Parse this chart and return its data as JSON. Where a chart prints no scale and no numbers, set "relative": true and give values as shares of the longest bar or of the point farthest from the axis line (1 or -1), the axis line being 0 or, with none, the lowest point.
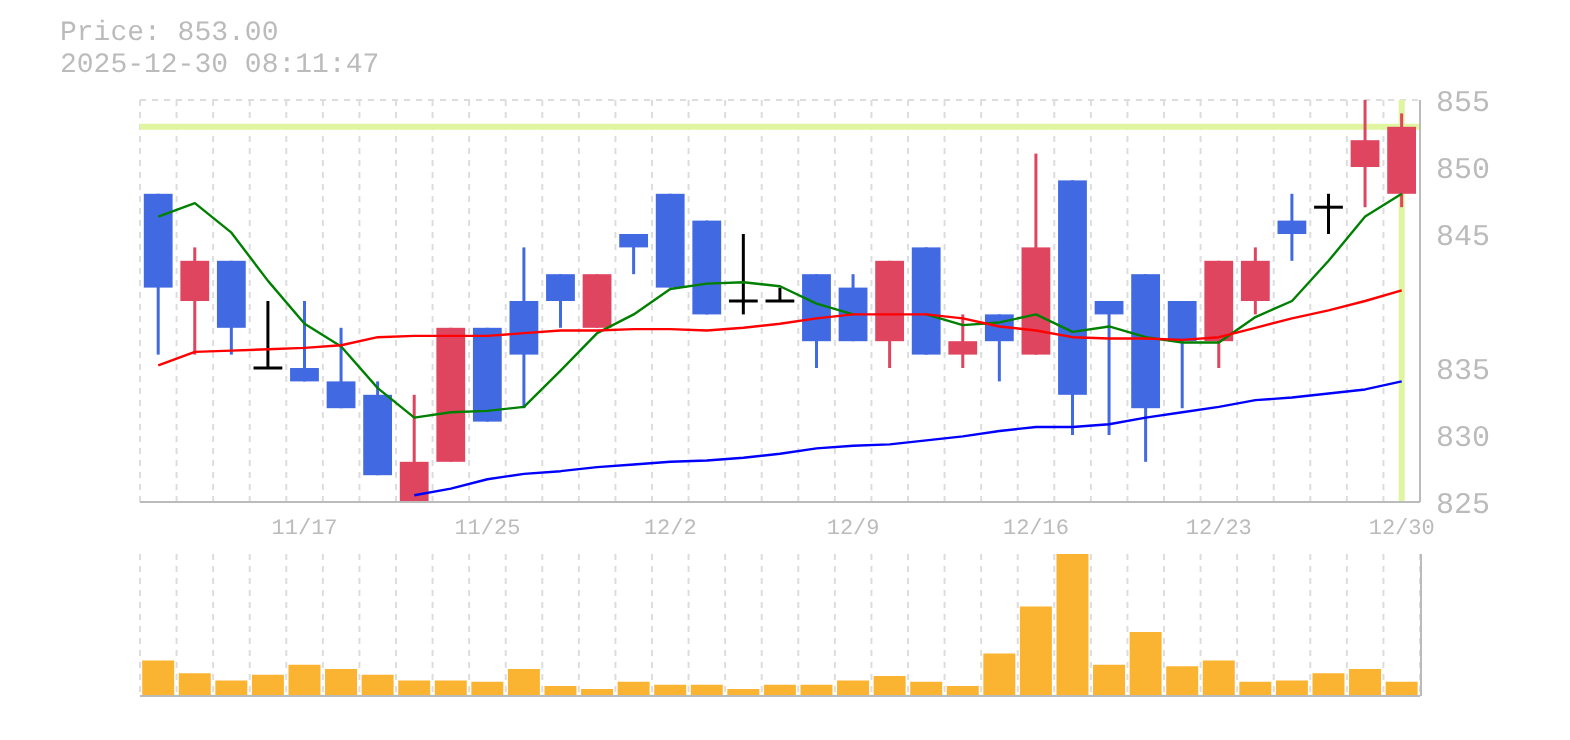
{
  "chart_data": [
    {
      "type": "candlestick",
      "title": "Price: 853.00",
      "subtitle": "2025-12-30 08:11:47",
      "categories": [
        null,
        null,
        null,
        null,
        "11/17",
        null,
        null,
        null,
        null,
        "11/25",
        null,
        null,
        null,
        null,
        "12/2",
        null,
        null,
        null,
        null,
        "12/9",
        null,
        null,
        null,
        null,
        "12/16",
        null,
        null,
        null,
        null,
        "12/23",
        null,
        null,
        null,
        null,
        "12/30"
      ],
      "ohlc": [
        [
          848,
          848,
          836,
          841
        ],
        [
          840,
          844,
          836,
          843
        ],
        [
          843,
          843,
          836,
          838
        ],
        [
          835,
          840,
          835,
          835
        ],
        [
          835,
          840,
          834,
          834
        ],
        [
          834,
          838,
          832,
          832
        ],
        [
          833,
          834,
          827,
          827
        ],
        [
          825,
          833,
          825,
          828
        ],
        [
          828,
          838,
          828,
          838
        ],
        [
          838,
          838,
          831,
          831
        ],
        [
          840,
          844,
          832,
          836
        ],
        [
          842,
          842,
          838,
          840
        ],
        [
          838,
          842,
          838,
          842
        ],
        [
          845,
          845,
          842,
          844
        ],
        [
          848,
          848,
          841,
          841
        ],
        [
          846,
          846,
          839,
          839
        ],
        [
          840,
          845,
          839,
          840
        ],
        [
          840,
          841,
          840,
          840
        ],
        [
          842,
          842,
          835,
          837
        ],
        [
          841,
          842,
          837,
          837
        ],
        [
          837,
          843,
          835,
          843
        ],
        [
          844,
          844,
          836,
          836
        ],
        [
          836,
          839,
          835,
          837
        ],
        [
          839,
          839,
          834,
          837
        ],
        [
          836,
          851,
          836,
          844
        ],
        [
          849,
          849,
          830,
          833
        ],
        [
          840,
          840,
          830,
          839
        ],
        [
          842,
          842,
          828,
          832
        ],
        [
          840,
          840,
          832,
          837
        ],
        [
          837,
          843,
          835,
          843
        ],
        [
          840,
          844,
          839,
          843
        ],
        [
          846,
          848,
          843,
          845
        ],
        [
          847,
          848,
          845,
          847
        ],
        [
          850,
          855,
          847,
          852
        ],
        [
          848,
          854,
          847,
          853
        ]
      ],
      "colors": [
        "#4169e1",
        "#e04560",
        "#4169e1",
        "#000000",
        "#4169e1",
        "#4169e1",
        "#4169e1",
        "#e04560",
        "#e04560",
        "#4169e1",
        "#4169e1",
        "#4169e1",
        "#e04560",
        "#4169e1",
        "#4169e1",
        "#4169e1",
        "#000000",
        "#000000",
        "#4169e1",
        "#4169e1",
        "#e04560",
        "#4169e1",
        "#e04560",
        "#4169e1",
        "#e04560",
        "#4169e1",
        "#4169e1",
        "#4169e1",
        "#4169e1",
        "#e04560",
        "#e04560",
        "#4169e1",
        "#000000",
        "#e04560",
        "#e04560"
      ],
      "series": [
        {
          "type": "line",
          "color": "#008000",
          "values": [
            846.3,
            847.3,
            845.1,
            841.5,
            838.3,
            836.6,
            833.5,
            831.3,
            831.7,
            831.8,
            832.1,
            834.8,
            837.6,
            839.0,
            840.9,
            841.3,
            841.4,
            841.1,
            839.8,
            839.0,
            null,
            839.0,
            838.2,
            838.4,
            839.0,
            837.7,
            838.1,
            837.3,
            836.9,
            836.9,
            838.8,
            840.0,
            843.0,
            846.3,
            848.0
          ]
        },
        {
          "type": "line",
          "color": "#ff0000",
          "values": [
            835.2,
            836.2,
            836.3,
            836.4,
            836.5,
            836.7,
            837.3,
            837.4,
            837.4,
            837.4,
            837.6,
            837.8,
            837.8,
            837.9,
            837.9,
            837.8,
            838.0,
            838.3,
            838.7,
            839.0,
            839.0,
            839.0,
            838.7,
            838.1,
            837.8,
            837.3,
            837.2,
            837.2,
            837.1,
            837.3,
            838.0,
            838.7,
            839.3,
            840.0,
            840.8
          ]
        },
        {
          "type": "line",
          "color": "#0000ff",
          "values": [
            null,
            null,
            null,
            null,
            null,
            null,
            null,
            825.5,
            826.0,
            826.7,
            827.1,
            827.3,
            827.6,
            827.8,
            828.0,
            828.1,
            828.3,
            828.6,
            829.0,
            829.2,
            829.3,
            829.6,
            829.9,
            830.3,
            830.6,
            830.6,
            830.8,
            831.3,
            831.7,
            832.1,
            832.6,
            832.8,
            833.1,
            833.4,
            834.0
          ]
        }
      ],
      "ylim": [
        825,
        855
      ],
      "yticks": [
        855,
        850,
        845,
        835,
        830,
        825
      ],
      "grid": true,
      "ref_lines": [
        {
          "axis": "y",
          "value": 853,
          "color": "#dff5a0"
        },
        {
          "axis": "x",
          "value": "12/30",
          "color": "#dff5a0"
        }
      ]
    },
    {
      "type": "bar",
      "relative": true,
      "color": "#fbb432",
      "grid": "x",
      "categories": [
        null,
        null,
        null,
        null,
        null,
        null,
        null,
        null,
        null,
        null,
        null,
        null,
        null,
        null,
        null,
        null,
        null,
        null,
        null,
        null,
        null,
        null,
        null,
        null,
        null,
        null,
        null,
        null,
        null,
        null,
        null,
        null,
        null,
        null,
        null
      ],
      "values": [
        0.25,
        0.16,
        0.11,
        0.15,
        0.22,
        0.19,
        0.15,
        0.11,
        0.11,
        0.1,
        0.19,
        0.07,
        0.05,
        0.1,
        0.08,
        0.08,
        0.05,
        0.08,
        0.08,
        0.11,
        0.14,
        0.1,
        0.07,
        0.3,
        0.63,
        1,
        0.22,
        0.45,
        0.21,
        0.25,
        0.1,
        0.11,
        0.16,
        0.19,
        0.1
      ]
    }
  ]
}
